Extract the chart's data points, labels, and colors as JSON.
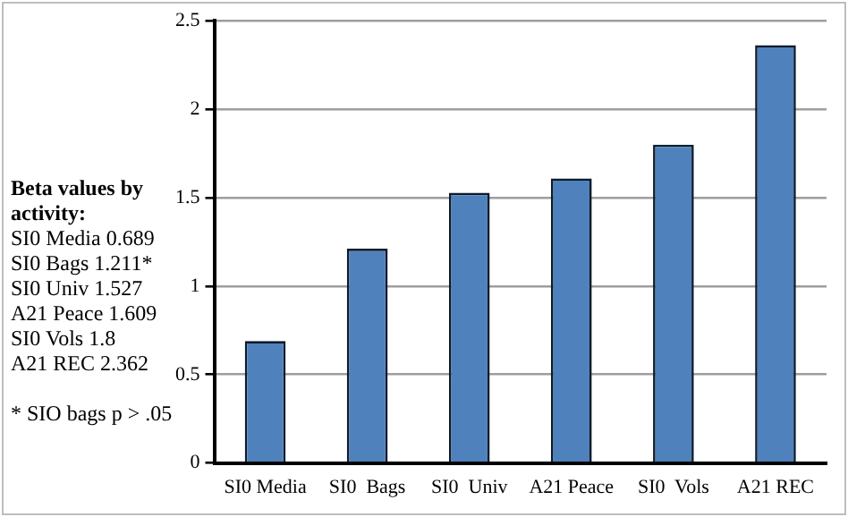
{
  "chart_data": {
    "type": "bar",
    "categories": [
      "SI0 Media",
      "SI0  Bags",
      "SI0  Univ",
      "A21 Peace",
      "SI0  Vols",
      "A21 REC"
    ],
    "values": [
      0.689,
      1.211,
      1.527,
      1.609,
      1.8,
      2.362
    ],
    "color": "#4f81bd",
    "ylim": [
      0,
      2.5
    ],
    "yticks": [
      0,
      0.5,
      1,
      1.5,
      2,
      2.5
    ],
    "grid": "y",
    "annotations": [
      "Beta values by activity:",
      "SI0 Media 0.689",
      "SI0 Bags 1.211*",
      "SI0 Univ 1.527",
      "A21 Peace 1.609",
      "SI0 Vols 1.8",
      "A21 REC 2.362",
      "* SIO bags p > .05"
    ]
  }
}
